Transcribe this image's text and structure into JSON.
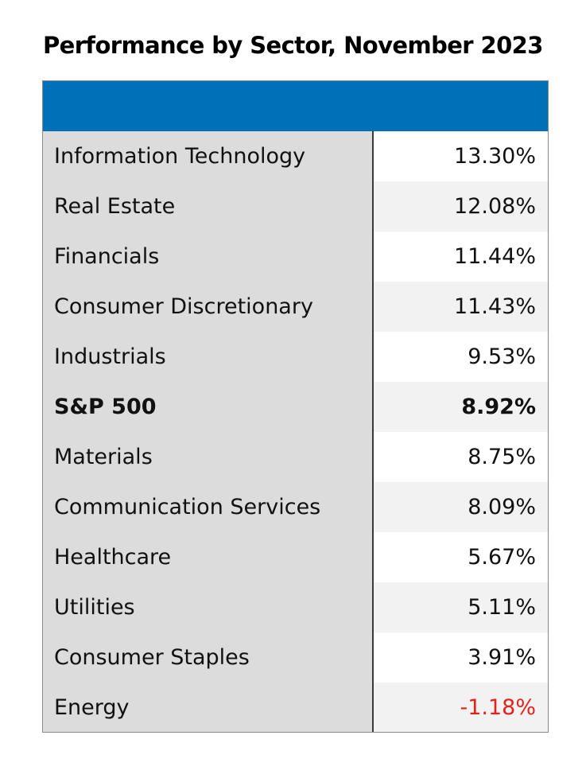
{
  "chart_data": {
    "type": "table",
    "title": "Performance by Sector, November 2023",
    "header_color": "#0070b8",
    "negative_color": "#e2231a",
    "rows": [
      {
        "label": "Information Technology",
        "value": "13.30%",
        "number": 13.3
      },
      {
        "label": "Real Estate",
        "value": "12.08%",
        "number": 12.08
      },
      {
        "label": "Financials",
        "value": "11.44%",
        "number": 11.44
      },
      {
        "label": "Consumer Discretionary",
        "value": "11.43%",
        "number": 11.43
      },
      {
        "label": "Industrials",
        "value": "9.53%",
        "number": 9.53
      },
      {
        "label": "S&P 500",
        "value": "8.92%",
        "number": 8.92,
        "bold": true
      },
      {
        "label": "Materials",
        "value": "8.75%",
        "number": 8.75
      },
      {
        "label": "Communication Services",
        "value": "8.09%",
        "number": 8.09
      },
      {
        "label": "Healthcare",
        "value": "5.67%",
        "number": 5.67
      },
      {
        "label": "Utilities",
        "value": "5.11%",
        "number": 5.11
      },
      {
        "label": "Consumer Staples",
        "value": "3.91%",
        "number": 3.91
      },
      {
        "label": "Energy",
        "value": "-1.18%",
        "number": -1.18
      }
    ]
  }
}
